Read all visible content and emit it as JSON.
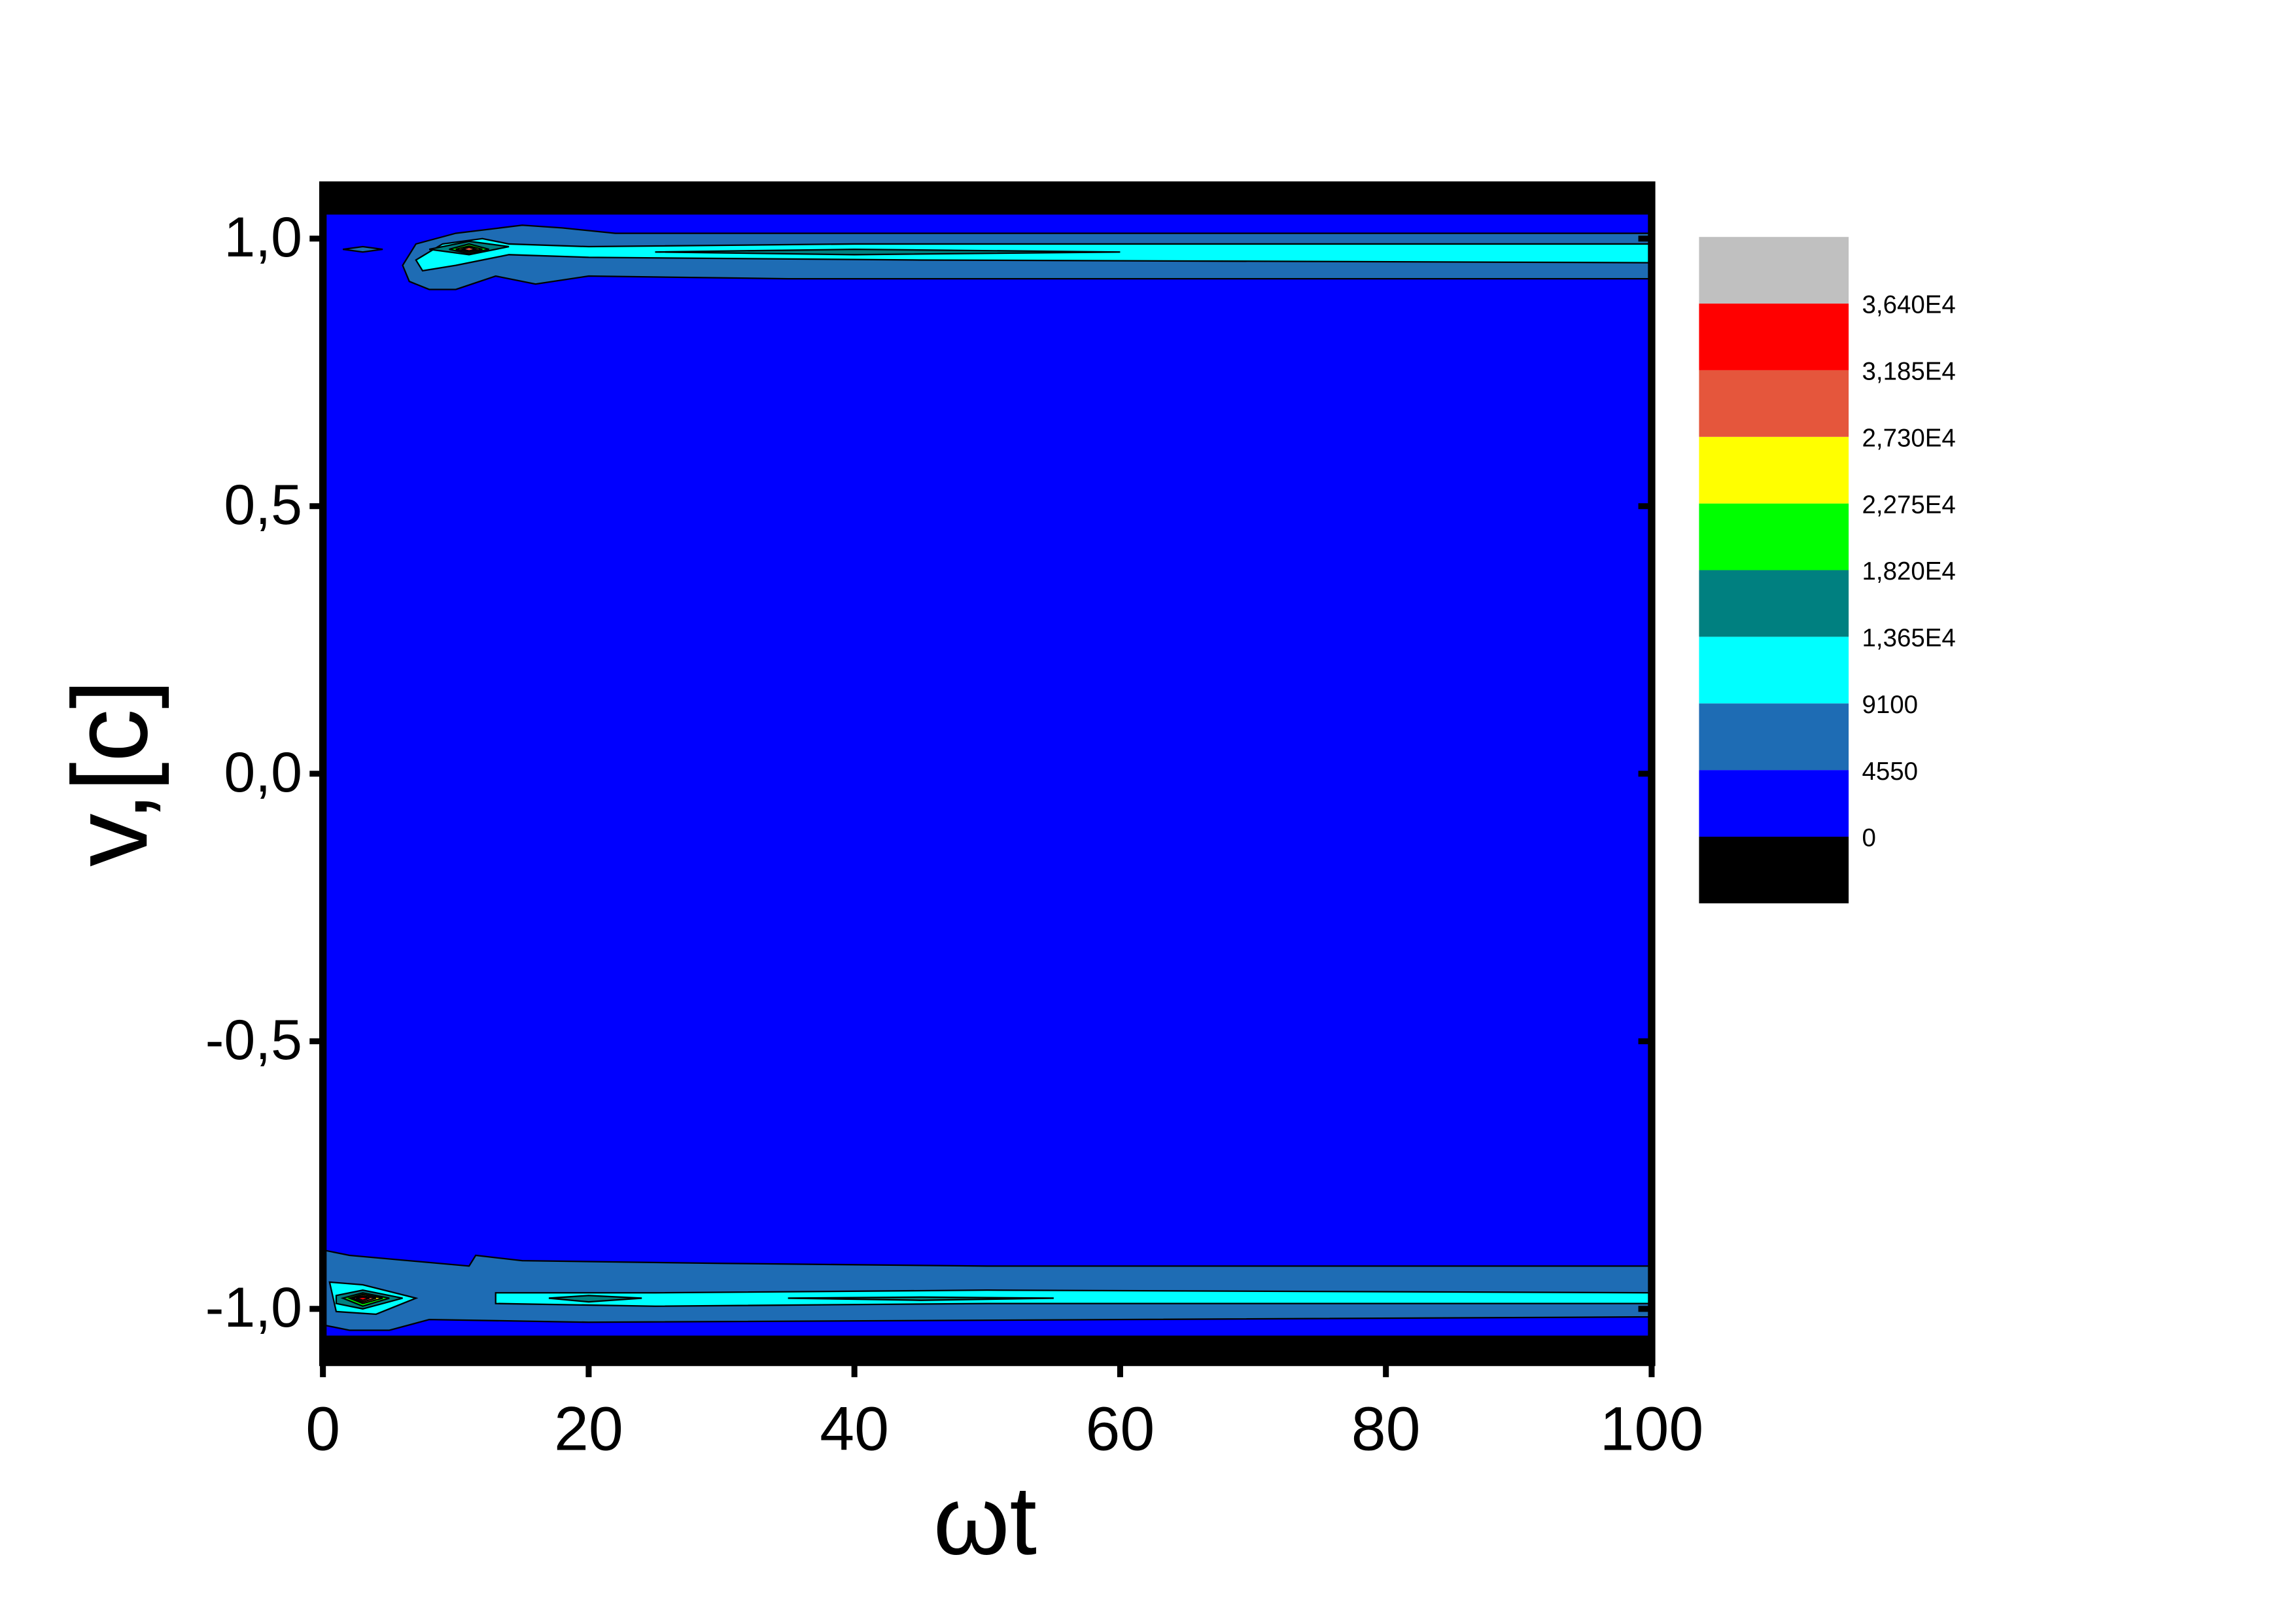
{
  "chart_data": {
    "type": "contour",
    "x_label": "ωt",
    "y_label": "v,[c]",
    "xlim": [
      0,
      100
    ],
    "ylim": [
      -1.1,
      1.1
    ],
    "xticks": [
      0,
      20,
      40,
      60,
      80,
      100
    ],
    "yticks": [
      {
        "value": -1,
        "label": "-1,0"
      },
      {
        "value": -0.5,
        "label": "-0,5"
      },
      {
        "value": 0,
        "label": "0,0"
      },
      {
        "value": 0.5,
        "label": "0,5"
      },
      {
        "value": 1,
        "label": "1,0"
      }
    ],
    "levels": [
      0,
      4550,
      9100,
      {
        "value": 13650,
        "label": "1,365E4"
      },
      {
        "value": 18200,
        "label": "1,820E4"
      },
      {
        "value": 22750,
        "label": "2,275E4"
      },
      {
        "value": 27300,
        "label": "2,730E4"
      },
      {
        "value": 31850,
        "label": "3,185E4"
      },
      {
        "value": 36400,
        "label": "3,640E4"
      }
    ],
    "colors": [
      "#000000",
      "#0000ff",
      "#1e6cb4",
      "#00ffff",
      "#008080",
      "#00ff00",
      "#ffff00",
      "#e5563c",
      "#ff0000",
      "#c0c0c0"
    ],
    "contours": [
      {
        "level": 0,
        "x": [
          0,
          100,
          100,
          0
        ],
        "y": [
          -1.05,
          -1.05,
          1.045,
          1.045
        ]
      },
      {
        "level": 4550,
        "x": [
          6,
          7,
          10,
          15,
          18,
          22,
          50,
          100,
          100,
          60,
          35,
          20,
          16,
          13,
          10,
          8,
          6.5
        ],
        "y": [
          0.95,
          0.99,
          1.01,
          1.025,
          1.02,
          1.01,
          1.01,
          1.01,
          0.925,
          0.925,
          0.925,
          0.93,
          0.915,
          0.93,
          0.905,
          0.905,
          0.92
        ]
      },
      {
        "level": 4550,
        "x": [
          1.5,
          3,
          4.5,
          3
        ],
        "y": [
          0.98,
          0.985,
          0.98,
          0.975
        ]
      },
      {
        "level": 9100,
        "x": [
          7,
          9,
          12,
          14,
          20,
          40,
          100,
          100,
          45,
          20,
          14,
          10,
          7.5
        ],
        "y": [
          0.96,
          0.99,
          1.0,
          0.99,
          0.985,
          0.99,
          0.99,
          0.955,
          0.96,
          0.965,
          0.97,
          0.95,
          0.94
        ]
      },
      {
        "level": 13650,
        "x": [
          8,
          11,
          14,
          11
        ],
        "y": [
          0.98,
          0.995,
          0.985,
          0.97
        ]
      },
      {
        "level": 13650,
        "x": [
          25,
          40,
          60,
          40
        ],
        "y": [
          0.975,
          0.98,
          0.975,
          0.97
        ]
      },
      {
        "level": 18200,
        "x": [
          9.5,
          11,
          12.5,
          11
        ],
        "y": [
          0.98,
          0.99,
          0.98,
          0.972
        ]
      },
      {
        "level": 22750,
        "x": [
          10,
          11,
          12,
          11
        ],
        "y": [
          0.98,
          0.986,
          0.98,
          0.975
        ]
      },
      {
        "level": 27300,
        "x": [
          10.5,
          11,
          11.5,
          11
        ],
        "y": [
          0.98,
          0.984,
          0.98,
          0.977
        ]
      },
      {
        "level": 4550,
        "x": [
          0,
          2,
          11,
          11.5,
          15,
          30,
          50,
          100,
          100,
          60,
          20,
          8,
          5,
          2,
          0
        ],
        "y": [
          -0.89,
          -0.9,
          -0.92,
          -0.9,
          -0.91,
          -0.915,
          -0.92,
          -0.92,
          -1.015,
          -1.02,
          -1.025,
          -1.02,
          -1.04,
          -1.04,
          -1.03
        ]
      },
      {
        "level": 9100,
        "x": [
          0.5,
          3,
          7,
          4,
          1
        ],
        "y": [
          -0.95,
          -0.955,
          -0.98,
          -1.01,
          -1.005
        ]
      },
      {
        "level": 9100,
        "x": [
          13,
          25,
          50,
          100,
          100,
          50,
          25,
          13
        ],
        "y": [
          -0.97,
          -0.97,
          -0.965,
          -0.97,
          -0.99,
          -0.99,
          -0.995,
          -0.99
        ]
      },
      {
        "level": 13650,
        "x": [
          1,
          3,
          6,
          3,
          1
        ],
        "y": [
          -0.975,
          -0.965,
          -0.98,
          -1.0,
          -0.99
        ]
      },
      {
        "level": 13650,
        "x": [
          17,
          20,
          24,
          20
        ],
        "y": [
          -0.98,
          -0.975,
          -0.98,
          -0.987
        ]
      },
      {
        "level": 13650,
        "x": [
          35,
          45,
          55,
          45
        ],
        "y": [
          -0.98,
          -0.978,
          -0.98,
          -0.984
        ]
      },
      {
        "level": 18200,
        "x": [
          1.5,
          3,
          5,
          3
        ],
        "y": [
          -0.98,
          -0.97,
          -0.98,
          -0.995
        ]
      },
      {
        "level": 22750,
        "x": [
          2,
          3,
          4.5,
          3
        ],
        "y": [
          -0.98,
          -0.973,
          -0.98,
          -0.99
        ]
      },
      {
        "level": 27300,
        "x": [
          2.2,
          3,
          4,
          3
        ],
        "y": [
          -0.98,
          -0.976,
          -0.98,
          -0.987
        ]
      },
      {
        "level": 31850,
        "x": [
          2.5,
          3,
          3.5,
          3
        ],
        "y": [
          -0.98,
          -0.978,
          -0.98,
          -0.984
        ]
      }
    ]
  }
}
